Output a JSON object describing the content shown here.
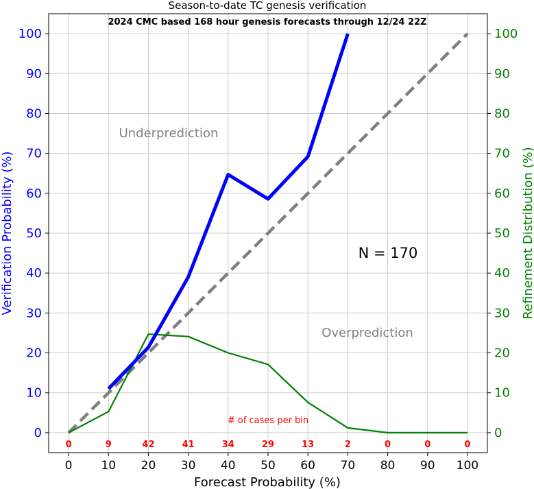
{
  "chart_data": {
    "type": "line",
    "title": "Season-to-date TC genesis verification",
    "subtitle": "2024 CMC based 168 hour genesis forecasts through 12/24 22Z",
    "xlabel": "Forecast Probability (%)",
    "ylabel": "Verification Probability (%)",
    "y2label": "Refinement Distribution (%)",
    "xlim": [
      -5,
      105
    ],
    "ylim": [
      -5,
      105
    ],
    "xticks": [
      0,
      10,
      20,
      30,
      40,
      50,
      60,
      70,
      80,
      90,
      100
    ],
    "yticks": [
      0,
      10,
      20,
      30,
      40,
      50,
      60,
      70,
      80,
      90,
      100
    ],
    "grid": true,
    "series": [
      {
        "role": "verification",
        "color": "#0000ff",
        "x": [
          10,
          20,
          30,
          40,
          50,
          60,
          70
        ],
        "y": [
          11,
          21.4,
          39,
          64.7,
          58.6,
          69.2,
          100
        ]
      },
      {
        "role": "perfect-reliability",
        "color": "#808080",
        "style": "dashed",
        "x": [
          0,
          100
        ],
        "y": [
          0,
          100
        ]
      },
      {
        "role": "refinement",
        "color": "#008000",
        "x": [
          0,
          10,
          20,
          30,
          40,
          50,
          60,
          70,
          80,
          90,
          100
        ],
        "y": [
          0,
          5.3,
          24.7,
          24.1,
          20,
          17.1,
          7.6,
          1.2,
          0,
          0,
          0
        ]
      }
    ],
    "cases": {
      "label": "# of cases per bin",
      "x": [
        0,
        10,
        20,
        30,
        40,
        50,
        60,
        70,
        80,
        90,
        100
      ],
      "values": [
        "0",
        "9",
        "42",
        "41",
        "34",
        "29",
        "13",
        "2",
        "0",
        "0",
        "0"
      ],
      "color": "#ff0000"
    },
    "annotations": {
      "underprediction": "Underprediction",
      "overprediction": "Overprediction",
      "n_label": "N = 170"
    },
    "colors": {
      "left_axis": "#0000ff",
      "right_axis": "#008000",
      "annotation": "#808080",
      "grid": "#cccccc"
    }
  }
}
